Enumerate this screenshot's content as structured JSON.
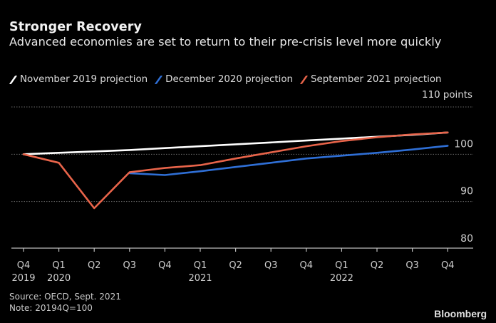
{
  "header": {
    "title": "Stronger Recovery",
    "subtitle": "Advanced economies are set to return to their pre-crisis level more quickly"
  },
  "legend": [
    {
      "label": "November 2019 projection",
      "color": "#ffffff"
    },
    {
      "label": "December 2020 projection",
      "color": "#2f6fd6"
    },
    {
      "label": "September 2021 projection",
      "color": "#e8644a"
    }
  ],
  "unit_label": "110 points",
  "footer": {
    "source": "Source: OECD, Sept. 2021",
    "note": "Note: 20194Q=100",
    "brand": "Bloomberg"
  },
  "chart_data": {
    "type": "line",
    "title": "Stronger Recovery",
    "subtitle": "Advanced economies are set to return to their pre-crisis level more quickly",
    "xlabel": "",
    "ylabel": "points",
    "x": [
      "Q4 2019",
      "Q1 2020",
      "Q2 2020",
      "Q3 2020",
      "Q4 2020",
      "Q1 2021",
      "Q2 2021",
      "Q3 2021",
      "Q4 2021",
      "Q1 2022",
      "Q2 2022",
      "Q3 2022",
      "Q4 2022"
    ],
    "x_tick_labels": [
      {
        "quarter": "Q4",
        "year": "2019"
      },
      {
        "quarter": "Q1",
        "year": "2020"
      },
      {
        "quarter": "Q2",
        "year": ""
      },
      {
        "quarter": "Q3",
        "year": ""
      },
      {
        "quarter": "Q4",
        "year": ""
      },
      {
        "quarter": "Q1",
        "year": "2021"
      },
      {
        "quarter": "Q2",
        "year": ""
      },
      {
        "quarter": "Q3",
        "year": ""
      },
      {
        "quarter": "Q4",
        "year": ""
      },
      {
        "quarter": "Q1",
        "year": "2022"
      },
      {
        "quarter": "Q2",
        "year": ""
      },
      {
        "quarter": "Q3",
        "year": ""
      },
      {
        "quarter": "Q4",
        "year": ""
      }
    ],
    "y_ticks": [
      80,
      90,
      100,
      110
    ],
    "y_tick_labels": [
      "80",
      "90",
      "100",
      "110 points"
    ],
    "ylim": [
      80,
      110
    ],
    "grid": true,
    "legend_position": "top-left",
    "series": [
      {
        "name": "November 2019 projection",
        "color": "#ffffff",
        "values": [
          100,
          100.3,
          100.6,
          100.9,
          101.3,
          101.7,
          102.1,
          102.5,
          102.9,
          103.3,
          103.7,
          104.1,
          104.6
        ]
      },
      {
        "name": "December 2020 projection",
        "color": "#2f6fd6",
        "values": [
          null,
          null,
          null,
          96.0,
          95.6,
          96.4,
          97.3,
          98.2,
          99.1,
          99.7,
          100.3,
          101.0,
          101.8
        ]
      },
      {
        "name": "September 2021 projection",
        "color": "#e8644a",
        "values": [
          100,
          98.2,
          88.6,
          96.2,
          97.1,
          97.7,
          99.1,
          100.4,
          101.7,
          102.8,
          103.6,
          104.2,
          104.6
        ]
      }
    ]
  }
}
